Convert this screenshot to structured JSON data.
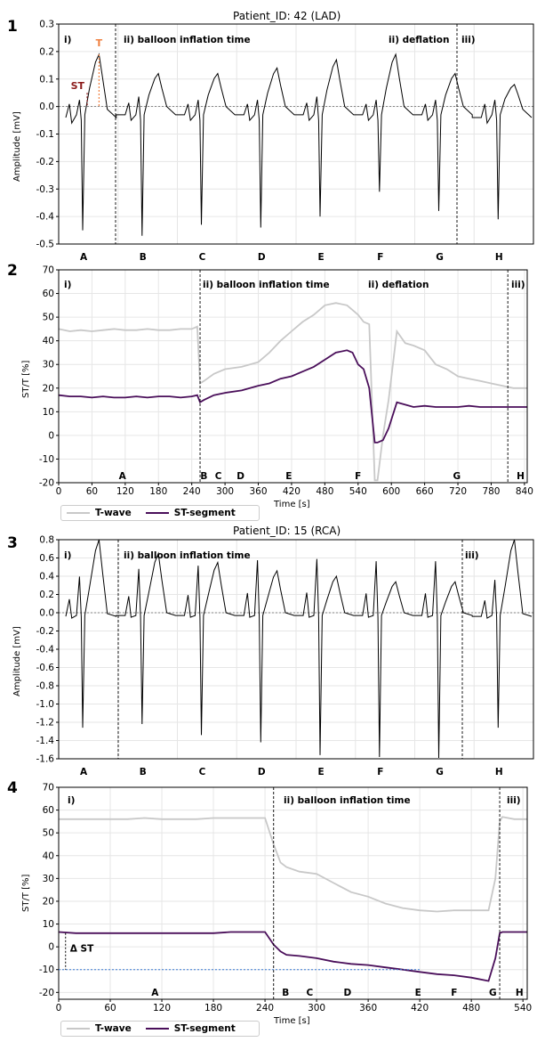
{
  "figure": {
    "panel_numbers": [
      "1",
      "2",
      "3",
      "4"
    ],
    "legend": {
      "t_label": "T-wave",
      "st_label": "ST-segment"
    },
    "colors": {
      "t_wave": "#c8c8c8",
      "st_segment": "#4a0f5a",
      "ecg": "#000000",
      "t_marker": "#f08040",
      "st_marker": "#8b1a1a",
      "delta_line": "#3a7bd5"
    }
  },
  "chart_data": [
    {
      "type": "line",
      "title": "Patient_ID: 42 (LAD)",
      "ylabel": "Amplitude [mV]",
      "xlabel": "",
      "ylim": [
        -0.5,
        0.3
      ],
      "yticks": [
        0.3,
        0.2,
        0.1,
        0.0,
        -0.1,
        -0.2,
        -0.3,
        -0.4,
        -0.5
      ],
      "grid": true,
      "beat_labels": [
        "A",
        "B",
        "C",
        "D",
        "E",
        "F",
        "G",
        "H"
      ],
      "phase_labels": [
        "i)",
        "ii) balloon inflation time",
        "ii) deflation",
        "iii)"
      ],
      "annotations": [
        "T",
        "ST"
      ],
      "beats": [
        {
          "label": "A",
          "r": 0.02,
          "s": -0.45,
          "t": 0.19
        },
        {
          "label": "B",
          "r": 0.03,
          "s": -0.47,
          "t": 0.12
        },
        {
          "label": "C",
          "r": 0.02,
          "s": -0.43,
          "t": 0.12
        },
        {
          "label": "D",
          "r": 0.02,
          "s": -0.44,
          "t": 0.14
        },
        {
          "label": "E",
          "r": 0.03,
          "s": -0.4,
          "t": 0.17
        },
        {
          "label": "F",
          "r": 0.02,
          "s": -0.31,
          "t": 0.19
        },
        {
          "label": "G",
          "r": 0.02,
          "s": -0.38,
          "t": 0.12
        },
        {
          "label": "H",
          "r": 0.02,
          "s": -0.41,
          "t": 0.08
        }
      ]
    },
    {
      "type": "line",
      "ylabel": "ST/T [%]",
      "xlabel": "Time [s]",
      "xlim": [
        0,
        845
      ],
      "ylim": [
        -20,
        70
      ],
      "xticks": [
        0,
        60,
        120,
        180,
        240,
        300,
        360,
        420,
        480,
        540,
        600,
        660,
        720,
        780,
        840
      ],
      "yticks": [
        70,
        60,
        50,
        40,
        30,
        20,
        10,
        0,
        -10,
        -20
      ],
      "grid": true,
      "phase_labels": [
        "i)",
        "ii) balloon inflation time",
        "ii) deflation",
        "iii)"
      ],
      "phase_lines": [
        255,
        810
      ],
      "letters": [
        {
          "t": "A",
          "x": 115
        },
        {
          "t": "B",
          "x": 262
        },
        {
          "t": "C",
          "x": 288
        },
        {
          "t": "D",
          "x": 328
        },
        {
          "t": "E",
          "x": 415
        },
        {
          "t": "F",
          "x": 540
        },
        {
          "t": "G",
          "x": 718
        },
        {
          "t": "H",
          "x": 833
        }
      ],
      "series": [
        {
          "name": "T-wave",
          "x": [
            0,
            20,
            40,
            60,
            80,
            100,
            120,
            140,
            160,
            180,
            200,
            220,
            240,
            250,
            255,
            262,
            280,
            300,
            330,
            360,
            380,
            400,
            420,
            440,
            460,
            480,
            500,
            520,
            530,
            540,
            550,
            560,
            570,
            575,
            585,
            595,
            610,
            625,
            640,
            660,
            680,
            700,
            720,
            740,
            760,
            780,
            800,
            820,
            845
          ],
          "y": [
            45,
            44,
            44.5,
            44,
            44.5,
            45,
            44.5,
            44.5,
            45,
            44.5,
            44.5,
            45,
            45,
            46,
            22,
            23,
            26,
            28,
            29,
            31,
            35,
            40,
            44,
            48,
            51,
            55,
            56,
            55,
            53,
            51,
            48,
            47,
            -19,
            -19,
            0,
            15,
            44,
            39,
            38,
            36,
            30,
            28,
            25,
            24,
            23,
            22,
            21,
            20,
            20
          ]
        },
        {
          "name": "ST-segment",
          "x": [
            0,
            20,
            40,
            60,
            80,
            100,
            120,
            140,
            160,
            180,
            200,
            220,
            240,
            250,
            255,
            262,
            280,
            300,
            330,
            360,
            380,
            400,
            420,
            440,
            460,
            480,
            500,
            520,
            530,
            540,
            550,
            560,
            570,
            575,
            585,
            595,
            610,
            625,
            640,
            660,
            680,
            700,
            720,
            740,
            760,
            780,
            800,
            820,
            845
          ],
          "y": [
            17,
            16.5,
            16.5,
            16,
            16.5,
            16,
            16,
            16.5,
            16,
            16.5,
            16.5,
            16,
            16.5,
            17,
            14,
            15,
            17,
            18,
            19,
            21,
            22,
            24,
            25,
            27,
            29,
            32,
            35,
            36,
            35,
            30,
            28,
            20,
            -3,
            -3,
            -2,
            3,
            14,
            13,
            12,
            12.5,
            12,
            12,
            12,
            12.5,
            12,
            12,
            12,
            12,
            12
          ]
        }
      ]
    },
    {
      "type": "line",
      "title": "Patient_ID: 15 (RCA)",
      "ylabel": "Amplitude [mV]",
      "xlabel": "",
      "ylim": [
        -1.6,
        0.8
      ],
      "yticks": [
        0.8,
        0.6,
        0.4,
        0.2,
        0.0,
        -0.2,
        -0.4,
        -0.6,
        -0.8,
        -1.0,
        -1.2,
        -1.4,
        -1.6
      ],
      "grid": true,
      "beat_labels": [
        "A",
        "B",
        "C",
        "D",
        "E",
        "F",
        "G",
        "H"
      ],
      "phase_labels": [
        "i)",
        "ii) balloon inflation time",
        "iii)"
      ],
      "beats": [
        {
          "label": "A",
          "r": 0.33,
          "s": -1.26,
          "t": 0.8
        },
        {
          "label": "B",
          "r": 0.4,
          "s": -1.22,
          "t": 0.65
        },
        {
          "label": "C",
          "r": 0.43,
          "s": -1.34,
          "t": 0.55
        },
        {
          "label": "D",
          "r": 0.48,
          "s": -1.42,
          "t": 0.46
        },
        {
          "label": "E",
          "r": 0.49,
          "s": -1.56,
          "t": 0.4
        },
        {
          "label": "F",
          "r": 0.47,
          "s": -1.58,
          "t": 0.34
        },
        {
          "label": "G",
          "r": 0.47,
          "s": -1.59,
          "t": 0.34
        },
        {
          "label": "H",
          "r": 0.3,
          "s": -1.26,
          "t": 0.8
        }
      ]
    },
    {
      "type": "line",
      "ylabel": "ST/T [%]",
      "xlabel": "Time [s]",
      "xlim": [
        0,
        545
      ],
      "ylim": [
        -23,
        70
      ],
      "xticks": [
        0,
        60,
        120,
        180,
        240,
        300,
        360,
        420,
        480,
        540
      ],
      "yticks": [
        70,
        60,
        50,
        40,
        30,
        20,
        10,
        0,
        -10,
        -20
      ],
      "grid": true,
      "phase_labels": [
        "i)",
        "ii) balloon inflation time",
        "iii)"
      ],
      "phase_lines": [
        250,
        513
      ],
      "annotations": [
        "Δ ST"
      ],
      "letters": [
        {
          "t": "A",
          "x": 112
        },
        {
          "t": "B",
          "x": 264
        },
        {
          "t": "C",
          "x": 292
        },
        {
          "t": "D",
          "x": 336
        },
        {
          "t": "E",
          "x": 418
        },
        {
          "t": "F",
          "x": 460
        },
        {
          "t": "G",
          "x": 505
        },
        {
          "t": "H",
          "x": 536
        }
      ],
      "series": [
        {
          "name": "T-wave",
          "x": [
            0,
            20,
            40,
            60,
            80,
            100,
            120,
            140,
            160,
            180,
            200,
            220,
            240,
            250,
            258,
            265,
            280,
            300,
            320,
            340,
            360,
            380,
            400,
            420,
            440,
            460,
            480,
            500,
            508,
            513,
            516,
            530,
            545
          ],
          "y": [
            56,
            56,
            56,
            56,
            56,
            56.5,
            56,
            56,
            56,
            56.5,
            56.5,
            56.5,
            56.5,
            45,
            37,
            35,
            33,
            32,
            28,
            24,
            22,
            19,
            17,
            16,
            15.5,
            16,
            16,
            16,
            30,
            55,
            57,
            56,
            56
          ]
        },
        {
          "name": "ST-segment",
          "x": [
            0,
            20,
            40,
            60,
            80,
            100,
            120,
            140,
            160,
            180,
            200,
            220,
            240,
            250,
            258,
            265,
            280,
            300,
            320,
            340,
            360,
            380,
            400,
            420,
            440,
            460,
            480,
            500,
            508,
            513,
            516,
            530,
            545
          ],
          "y": [
            6.5,
            6,
            6,
            6,
            6,
            6,
            6,
            6,
            6,
            6,
            6.5,
            6.5,
            6.5,
            1,
            -2,
            -3.5,
            -4,
            -5,
            -6.5,
            -7.5,
            -8,
            -9,
            -10,
            -11,
            -12,
            -12.5,
            -13.5,
            -15,
            -5,
            6,
            6.5,
            6.5,
            6.5
          ]
        }
      ],
      "baseline_reference": {
        "y": -10
      }
    }
  ]
}
